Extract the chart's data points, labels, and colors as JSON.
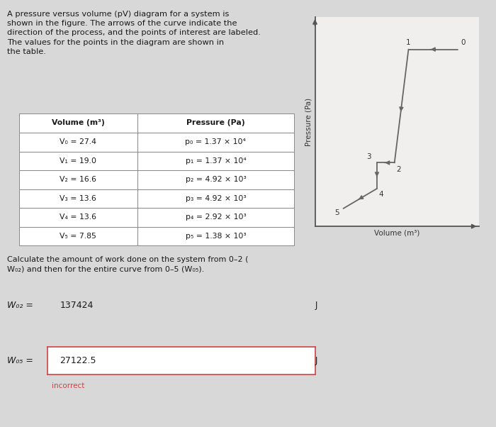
{
  "points": {
    "0": {
      "V": 27.4,
      "P": 13700
    },
    "1": {
      "V": 19.0,
      "P": 13700
    },
    "2": {
      "V": 16.6,
      "P": 4920
    },
    "3": {
      "V": 13.6,
      "P": 4920
    },
    "4": {
      "V": 13.6,
      "P": 2920
    },
    "5": {
      "V": 7.85,
      "P": 1380
    }
  },
  "xlabel": "Volume (m³)",
  "ylabel": "Pressure (Pa)",
  "line_color": "#666666",
  "label_color": "#333333",
  "background_color": "#d8d8d8",
  "page_color": "#f0efee",
  "axis_color": "#555555",
  "text_color": "#1a1a1a",
  "table_header_text": [
    "Volume (m³)",
    "Pressure (Pa)"
  ],
  "table_rows": [
    [
      "V₀ = 27.4",
      "p₀ = 1.37 × 10⁴"
    ],
    [
      "V₁ = 19.0",
      "p₁ = 1.37 × 10⁴"
    ],
    [
      "V₂ = 16.6",
      "p₂ = 4.92 × 10³"
    ],
    [
      "V₃ = 13.6",
      "p₃ = 4.92 × 10³"
    ],
    [
      "V₄ = 13.6",
      "p₄ = 2.92 × 10³"
    ],
    [
      "V₅ = 7.85",
      "p₅ = 1.38 × 10³"
    ]
  ],
  "title_line1": "A pressure versus volume (pV) diagram for a system is",
  "title_line2": "shown in the figure. The arrows of the curve indicate the",
  "title_line3": "direction of the process, and the points of interest are labeled.",
  "title_line4": "The values for the points in the diagram are shown in",
  "title_line5": "the table.",
  "calc_line1": "Calculate the amount of work done on the system from 0–2 (",
  "calc_line2": "W₀₂) and then for the entire curve from 0–5 (W₀₅).",
  "w02_label": "W₀₂ =",
  "w02_value": "137424",
  "w05_label": "W₀₅ =",
  "w05_value": "27122.5",
  "incorrect_text": "incorrect",
  "answer_box_color": "#c5d0e0",
  "w05_border_color": "#cc4444"
}
